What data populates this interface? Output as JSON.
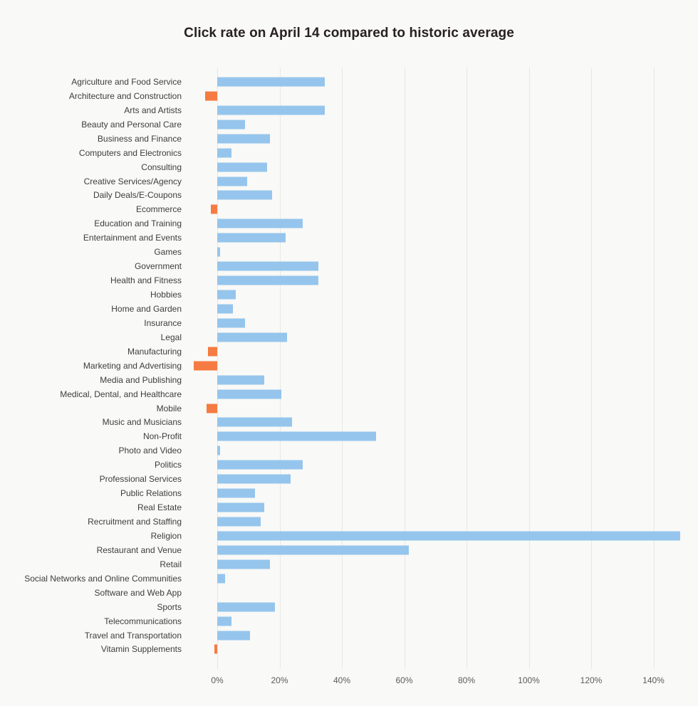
{
  "title": "Click rate on April 14 compared to historic average",
  "chart_data": {
    "type": "bar",
    "orientation": "horizontal",
    "title": "Click rate on April 14 compared to historic average",
    "unit": "%",
    "categories": [
      "Agriculture and Food Service",
      "Architecture and Construction",
      "Arts and Artists",
      "Beauty and Personal Care",
      "Business and Finance",
      "Computers and Electronics",
      "Consulting",
      "Creative Services/Agency",
      "Daily Deals/E-Coupons",
      "Ecommerce",
      "Education and Training",
      "Entertainment and Events",
      "Games",
      "Government",
      "Health and Fitness",
      "Hobbies",
      "Home and Garden",
      "Insurance",
      "Legal",
      "Manufacturing",
      "Marketing and Advertising",
      "Media and Publishing",
      "Medical, Dental, and Healthcare",
      "Mobile",
      "Music and Musicians",
      "Non-Profit",
      "Photo and Video",
      "Politics",
      "Professional Services",
      "Public Relations",
      "Real Estate",
      "Recruitment and Staffing",
      "Religion",
      "Restaurant and Venue",
      "Retail",
      "Social Networks and Online Communities",
      "Software and Web App",
      "Sports",
      "Telecommunications",
      "Travel and Transportation",
      "Vitamin Supplements"
    ],
    "values": [
      34.5,
      -4,
      34.5,
      9,
      17,
      4.5,
      16,
      9.5,
      17.5,
      -2,
      27.5,
      22,
      1,
      32.5,
      32.5,
      6,
      5,
      9,
      22.5,
      -3,
      -7.5,
      15,
      20.5,
      -3.5,
      24,
      51,
      1,
      27.5,
      23.5,
      12,
      15,
      14,
      148.5,
      61.5,
      17,
      2.5,
      0,
      18.5,
      4.5,
      10.5,
      -1
    ],
    "x_tick_values": [
      0,
      20,
      40,
      60,
      80,
      100,
      120,
      140
    ],
    "x_tick_labels": [
      "0%",
      "20%",
      "40%",
      "60%",
      "80%",
      "100%",
      "120%",
      "140%"
    ],
    "xlim": [
      -11.5,
      154
    ],
    "grid": true,
    "legend": "none",
    "colors": {
      "positive_bar": "#95c5ec",
      "negative_bar": "#f57b42",
      "background": "#f9f9f7",
      "gridline": "#e7e7e4",
      "label_text": "#3d3d3d",
      "tick_text": "#5b5b5b",
      "title_text": "#27211f"
    }
  }
}
